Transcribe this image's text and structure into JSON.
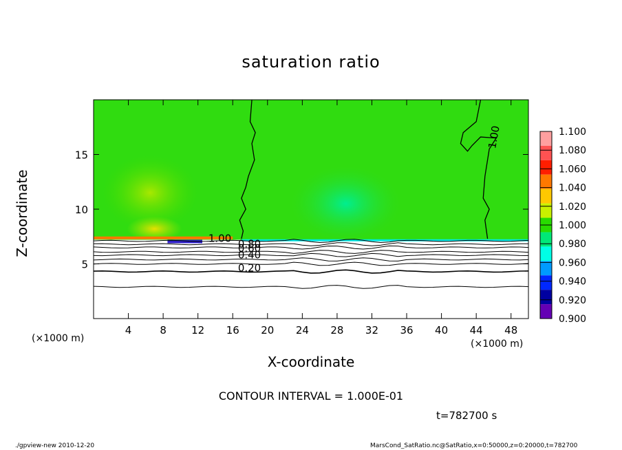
{
  "chart_data": {
    "type": "heatmap",
    "title": "saturation ratio",
    "xlabel": "X-coordinate",
    "ylabel": "Z-coordinate",
    "x_unit_left": "(×1000 m)",
    "x_unit_right": "(×1000 m)",
    "xlim": [
      0,
      50
    ],
    "ylim": [
      0,
      20
    ],
    "x_ticks": [
      "4",
      "8",
      "12",
      "16",
      "20",
      "24",
      "28",
      "32",
      "36",
      "40",
      "44",
      "48"
    ],
    "y_ticks": [
      "5",
      "10",
      "15"
    ],
    "colorbar": {
      "levels": [
        "1.100",
        "1.080",
        "1.060",
        "1.040",
        "1.020",
        "1.000",
        "0.980",
        "0.960",
        "0.940",
        "0.920",
        "0.900"
      ],
      "colors": [
        "#ff9f9f",
        "#ff5252",
        "#ff1e00",
        "#ff7800",
        "#ffc800",
        "#c8f000",
        "#28dc00",
        "#00e878",
        "#00ffe6",
        "#009bff",
        "#0028ff",
        "#0000a0",
        "#6400b4"
      ]
    },
    "contour_labels": [
      "1.00",
      "1.00",
      "0.80",
      "0.60",
      "0.40",
      "0.20"
    ],
    "contour_interval_text": "CONTOUR INTERVAL = 1.000E-01",
    "time_text": "t=782700 s"
  },
  "footer": {
    "left": "./gpview-new   2010-12-20",
    "right": "MarsCond_SatRatio.nc@SatRatio,x=0:50000,z=0:20000,t=782700"
  }
}
